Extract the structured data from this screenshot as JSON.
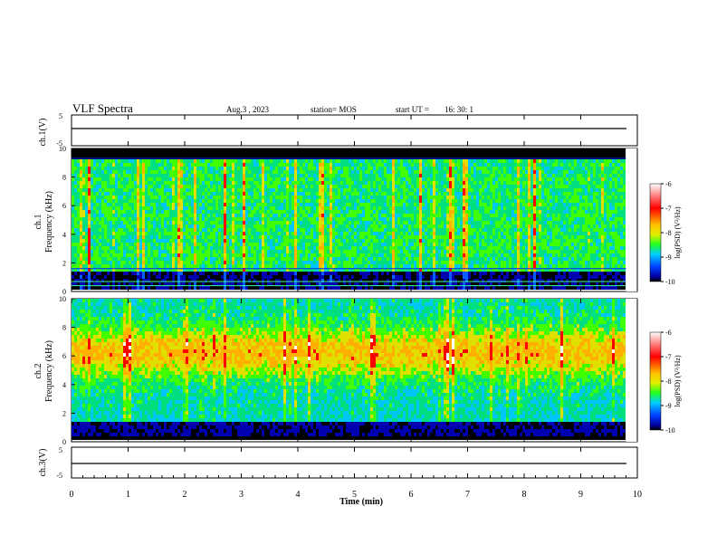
{
  "header": {
    "title": "VLF Spectra",
    "date": "Aug.3  , 2023",
    "station": "station= MOS",
    "start_ut_label": "start  UT  =",
    "start_ut_value": "16: 30: 1"
  },
  "colorbar": {
    "label": "log(PSD) (V²/Hz)",
    "ticks": [
      "-6",
      "-7",
      "-8",
      "-9",
      "-10"
    ],
    "colors": [
      "#ffffff",
      "#ff0000",
      "#ffb000",
      "#e0e000",
      "#40ff00",
      "#00e080",
      "#00c8ff",
      "#0060ff",
      "#0000b0",
      "#000000"
    ]
  },
  "chart_data": [
    {
      "type": "line",
      "name": "ch1-voltage",
      "ylabel": "ch.1(V)",
      "ylim": [
        -5,
        5
      ],
      "yticks": [
        "5",
        "-5"
      ],
      "xlim": [
        0,
        10
      ],
      "series": [
        {
          "values_desc": "flat",
          "x": [
            0,
            9.8
          ],
          "y": [
            0,
            0
          ]
        }
      ]
    },
    {
      "type": "heatmap",
      "name": "ch1-spectrogram",
      "ylabel": "ch.1 Frequency (kHz)",
      "ylim": [
        0,
        10
      ],
      "yticks": [
        "0",
        "2",
        "4",
        "6",
        "8",
        "10"
      ],
      "xlim": [
        0,
        9.8
      ],
      "zlim": [
        -10,
        -6
      ],
      "horizontal_lines_khz": [
        0.4,
        0.7,
        1.6,
        9.3
      ]
    },
    {
      "type": "heatmap",
      "name": "ch2-spectrogram",
      "ylabel": "ch.2 Frequency (kHz)",
      "ylim": [
        0,
        10
      ],
      "yticks": [
        "0",
        "2",
        "4",
        "6",
        "8",
        "10"
      ],
      "xlim": [
        0,
        9.8
      ],
      "zlim": [
        -10,
        -6
      ],
      "peak_band_khz": [
        4,
        8
      ]
    },
    {
      "type": "line",
      "name": "ch3-voltage",
      "ylabel": "ch.3(V)",
      "ylim": [
        -5,
        5
      ],
      "yticks": [
        "5",
        "-5"
      ],
      "xlim": [
        0,
        10
      ],
      "series": [
        {
          "x": [
            0,
            9.8
          ],
          "y": [
            0,
            0
          ]
        }
      ]
    }
  ],
  "xaxis": {
    "label": "Time  (min)",
    "ticks": [
      "0",
      "1",
      "2",
      "3",
      "4",
      "5",
      "6",
      "7",
      "8",
      "9",
      "10"
    ]
  }
}
